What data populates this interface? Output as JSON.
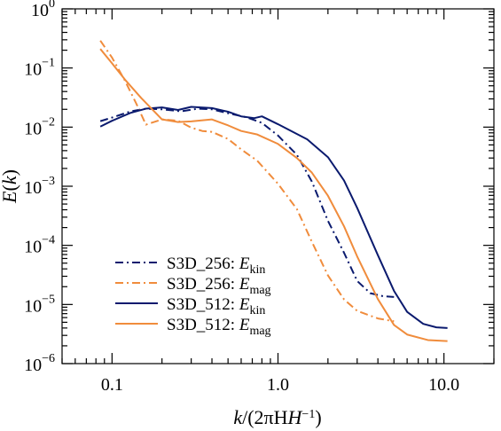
{
  "chart_data": {
    "type": "line",
    "xscale": "log",
    "yscale": "log",
    "xlim": [
      0.05,
      20
    ],
    "ylim": [
      1e-06,
      1
    ],
    "xlabel": {
      "k": "k",
      "rest": "/(2πH",
      "sup": "−1",
      "close": ")"
    },
    "ylabel": {
      "E": "E",
      "open": "(",
      "k": "k",
      "close": ")"
    },
    "x_ticks": [
      {
        "value": 0.1,
        "label": "0.1"
      },
      {
        "value": 1.0,
        "label": "1.0"
      },
      {
        "value": 10.0,
        "label": "10.0"
      }
    ],
    "y_ticks": [
      {
        "value": 1e-06,
        "base": "10",
        "exp": "−6"
      },
      {
        "value": 1e-05,
        "base": "10",
        "exp": "−5"
      },
      {
        "value": 0.0001,
        "base": "10",
        "exp": "−4"
      },
      {
        "value": 0.001,
        "base": "10",
        "exp": "−3"
      },
      {
        "value": 0.01,
        "base": "10",
        "exp": "−2"
      },
      {
        "value": 0.1,
        "base": "10",
        "exp": "−1"
      },
      {
        "value": 1,
        "base": "10",
        "exp": "0"
      }
    ],
    "series": [
      {
        "name": "S3D_256: E_kin",
        "label_prefix": "S3D_256: ",
        "label_var": "E",
        "label_sub": "kin",
        "color": "#0a1a6e",
        "dash": "dashdot",
        "points": [
          [
            0.085,
            0.0126
          ],
          [
            0.1,
            0.0145
          ],
          [
            0.13,
            0.0185
          ],
          [
            0.16,
            0.0205
          ],
          [
            0.2,
            0.02
          ],
          [
            0.26,
            0.0185
          ],
          [
            0.33,
            0.0205
          ],
          [
            0.4,
            0.02
          ],
          [
            0.5,
            0.0172
          ],
          [
            0.65,
            0.0146
          ],
          [
            0.8,
            0.0118
          ],
          [
            1.0,
            0.0072
          ],
          [
            1.3,
            0.0034
          ],
          [
            1.6,
            0.0012
          ],
          [
            2.0,
            0.00026
          ],
          [
            2.5,
            7.5e-05
          ],
          [
            3.0,
            2.5e-05
          ],
          [
            3.6,
            1.55e-05
          ],
          [
            4.3,
            1.38e-05
          ],
          [
            5.0,
            1.34e-05
          ]
        ]
      },
      {
        "name": "S3D_256: E_mag",
        "label_prefix": "S3D_256: ",
        "label_var": "E",
        "label_sub": "mag",
        "color": "#f08c3c",
        "dash": "dashdot",
        "points": [
          [
            0.085,
            0.29
          ],
          [
            0.1,
            0.15
          ],
          [
            0.12,
            0.06
          ],
          [
            0.14,
            0.025
          ],
          [
            0.16,
            0.011
          ],
          [
            0.2,
            0.0135
          ],
          [
            0.25,
            0.0128
          ],
          [
            0.3,
            0.0098
          ],
          [
            0.35,
            0.0086
          ],
          [
            0.4,
            0.0083
          ],
          [
            0.5,
            0.0063
          ],
          [
            0.6,
            0.0042
          ],
          [
            0.75,
            0.0027
          ],
          [
            1.0,
            0.0011
          ],
          [
            1.3,
            0.00041
          ],
          [
            1.6,
            0.000115
          ],
          [
            2.0,
            3.1e-05
          ],
          [
            2.5,
            1.22e-05
          ],
          [
            3.0,
            7.8e-06
          ],
          [
            4.0,
            5.8e-06
          ],
          [
            5.0,
            5.2e-06
          ]
        ]
      },
      {
        "name": "S3D_512: E_kin",
        "label_prefix": "S3D_512: ",
        "label_var": "E",
        "label_sub": "kin",
        "color": "#0a1a6e",
        "dash": "solid",
        "points": [
          [
            0.085,
            0.0102
          ],
          [
            0.1,
            0.0128
          ],
          [
            0.13,
            0.0175
          ],
          [
            0.16,
            0.0205
          ],
          [
            0.2,
            0.0215
          ],
          [
            0.25,
            0.0195
          ],
          [
            0.3,
            0.022
          ],
          [
            0.4,
            0.021
          ],
          [
            0.5,
            0.0182
          ],
          [
            0.6,
            0.0152
          ],
          [
            0.72,
            0.0142
          ],
          [
            0.8,
            0.0152
          ],
          [
            1.0,
            0.0112
          ],
          [
            1.5,
            0.0062
          ],
          [
            2.0,
            0.0031
          ],
          [
            2.5,
            0.00125
          ],
          [
            3.0,
            0.00043
          ],
          [
            4.0,
            6.8e-05
          ],
          [
            5.0,
            1.7e-05
          ],
          [
            6.0,
            7.5e-06
          ],
          [
            7.5,
            4.7e-06
          ],
          [
            9.0,
            4.1e-06
          ],
          [
            10.5,
            4e-06
          ]
        ]
      },
      {
        "name": "S3D_512: E_mag",
        "label_prefix": "S3D_512: ",
        "label_var": "E",
        "label_sub": "mag",
        "color": "#f08c3c",
        "dash": "solid",
        "points": [
          [
            0.085,
            0.21
          ],
          [
            0.1,
            0.12
          ],
          [
            0.12,
            0.063
          ],
          [
            0.15,
            0.031
          ],
          [
            0.2,
            0.0135
          ],
          [
            0.25,
            0.0122
          ],
          [
            0.3,
            0.0125
          ],
          [
            0.4,
            0.0135
          ],
          [
            0.5,
            0.0107
          ],
          [
            0.6,
            0.0086
          ],
          [
            0.75,
            0.0075
          ],
          [
            1.0,
            0.0052
          ],
          [
            1.3,
            0.003
          ],
          [
            1.6,
            0.0017
          ],
          [
            2.0,
            0.00069
          ],
          [
            2.5,
            0.00021
          ],
          [
            3.0,
            6.5e-05
          ],
          [
            4.0,
            1.23e-05
          ],
          [
            5.0,
            4.5e-06
          ],
          [
            6.0,
            3.1e-06
          ],
          [
            8.0,
            2.5e-06
          ],
          [
            10.5,
            2.4e-06
          ]
        ]
      }
    ],
    "legend": {
      "position": "bottom-left"
    }
  }
}
